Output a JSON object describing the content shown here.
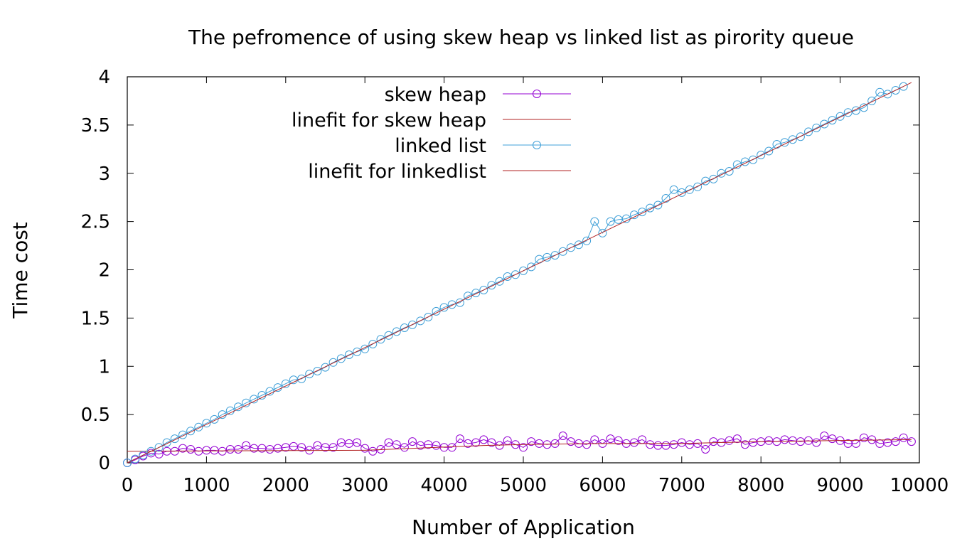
{
  "chart_data": {
    "type": "line",
    "title": "The pefromence of using skew heap vs linked list as pirority queue",
    "xlabel": "Number of Application",
    "ylabel": "Time cost",
    "xlim": [
      0,
      10000
    ],
    "ylim": [
      0,
      4
    ],
    "xticks": [
      0,
      1000,
      2000,
      3000,
      4000,
      5000,
      6000,
      7000,
      8000,
      9000,
      10000
    ],
    "yticks": [
      0,
      0.5,
      1,
      1.5,
      2,
      2.5,
      3,
      3.5,
      4
    ],
    "xtick_labels": [
      "0",
      "1000",
      "2000",
      "3000",
      "4000",
      "5000",
      "6000",
      "7000",
      "8000",
      "9000",
      "10000"
    ],
    "ytick_labels": [
      "0",
      "0.5",
      "1",
      "1.5",
      "2",
      "2.5",
      "3",
      "3.5",
      "4"
    ],
    "grid": false,
    "legend_position": "top-left",
    "series": [
      {
        "name": "skew heap",
        "style": "linespoints",
        "color": "#9400d3",
        "x": [
          0,
          100,
          200,
          300,
          400,
          500,
          600,
          700,
          800,
          900,
          1000,
          1100,
          1200,
          1300,
          1400,
          1500,
          1600,
          1700,
          1800,
          1900,
          2000,
          2100,
          2200,
          2300,
          2400,
          2500,
          2600,
          2700,
          2800,
          2900,
          3000,
          3100,
          3200,
          3300,
          3400,
          3500,
          3600,
          3700,
          3800,
          3900,
          4000,
          4100,
          4200,
          4300,
          4400,
          4500,
          4600,
          4700,
          4800,
          4900,
          5000,
          5100,
          5200,
          5300,
          5400,
          5500,
          5600,
          5700,
          5800,
          5900,
          6000,
          6100,
          6200,
          6300,
          6400,
          6500,
          6600,
          6700,
          6800,
          6900,
          7000,
          7100,
          7200,
          7300,
          7400,
          7500,
          7600,
          7700,
          7800,
          7900,
          8000,
          8100,
          8200,
          8300,
          8400,
          8500,
          8600,
          8700,
          8800,
          8900,
          9000,
          9100,
          9200,
          9300,
          9400,
          9500,
          9600,
          9700,
          9800,
          9900
        ],
        "y": [
          0.0,
          0.03,
          0.07,
          0.1,
          0.09,
          0.12,
          0.12,
          0.15,
          0.14,
          0.12,
          0.13,
          0.13,
          0.12,
          0.14,
          0.14,
          0.18,
          0.15,
          0.15,
          0.14,
          0.15,
          0.16,
          0.17,
          0.16,
          0.13,
          0.18,
          0.16,
          0.16,
          0.21,
          0.2,
          0.21,
          0.15,
          0.12,
          0.14,
          0.21,
          0.19,
          0.16,
          0.22,
          0.18,
          0.19,
          0.18,
          0.16,
          0.16,
          0.25,
          0.2,
          0.21,
          0.24,
          0.21,
          0.18,
          0.23,
          0.19,
          0.16,
          0.22,
          0.2,
          0.19,
          0.2,
          0.28,
          0.22,
          0.2,
          0.19,
          0.24,
          0.2,
          0.25,
          0.23,
          0.2,
          0.21,
          0.24,
          0.19,
          0.18,
          0.18,
          0.19,
          0.21,
          0.19,
          0.2,
          0.14,
          0.22,
          0.21,
          0.23,
          0.25,
          0.19,
          0.21,
          0.22,
          0.23,
          0.22,
          0.24,
          0.23,
          0.22,
          0.23,
          0.21,
          0.28,
          0.25,
          0.23,
          0.2,
          0.2,
          0.26,
          0.24,
          0.2,
          0.21,
          0.22,
          0.26,
          0.22
        ]
      },
      {
        "name": "linefit for skew heap",
        "style": "lines",
        "color": "#b22222",
        "x": [
          0,
          3000,
          4500,
          5000,
          6000,
          7000,
          8000,
          9900
        ],
        "y": [
          0.12,
          0.13,
          0.18,
          0.19,
          0.2,
          0.2,
          0.22,
          0.24
        ]
      },
      {
        "name": "linked list",
        "style": "linespoints",
        "color": "#40a0d8",
        "x": [
          0,
          100,
          200,
          300,
          400,
          500,
          600,
          700,
          800,
          900,
          1000,
          1100,
          1200,
          1300,
          1400,
          1500,
          1600,
          1700,
          1800,
          1900,
          2000,
          2100,
          2200,
          2300,
          2400,
          2500,
          2600,
          2700,
          2800,
          2900,
          3000,
          3100,
          3200,
          3300,
          3400,
          3500,
          3600,
          3700,
          3800,
          3900,
          4000,
          4100,
          4200,
          4300,
          4400,
          4500,
          4600,
          4700,
          4800,
          4900,
          5000,
          5100,
          5200,
          5300,
          5400,
          5500,
          5600,
          5700,
          5800,
          5900,
          6000,
          6100,
          6200,
          6300,
          6400,
          6500,
          6600,
          6700,
          6800,
          6900,
          7000,
          7100,
          7200,
          7300,
          7400,
          7500,
          7600,
          7700,
          7800,
          7900,
          8000,
          8100,
          8200,
          8300,
          8400,
          8500,
          8600,
          8700,
          8800,
          8900,
          9000,
          9100,
          9200,
          9300,
          9400,
          9500,
          9600,
          9700,
          9800
        ],
        "y": [
          0.0,
          0.04,
          0.08,
          0.12,
          0.16,
          0.21,
          0.25,
          0.29,
          0.33,
          0.37,
          0.41,
          0.45,
          0.5,
          0.54,
          0.58,
          0.62,
          0.66,
          0.7,
          0.74,
          0.78,
          0.82,
          0.86,
          0.87,
          0.92,
          0.95,
          0.99,
          1.04,
          1.08,
          1.12,
          1.15,
          1.18,
          1.23,
          1.28,
          1.32,
          1.36,
          1.4,
          1.43,
          1.47,
          1.51,
          1.57,
          1.61,
          1.64,
          1.66,
          1.73,
          1.76,
          1.79,
          1.84,
          1.88,
          1.93,
          1.95,
          1.99,
          2.03,
          2.11,
          2.13,
          2.15,
          2.19,
          2.23,
          2.26,
          2.3,
          2.5,
          2.38,
          2.5,
          2.52,
          2.53,
          2.57,
          2.6,
          2.64,
          2.67,
          2.74,
          2.83,
          2.8,
          2.83,
          2.86,
          2.92,
          2.94,
          3.0,
          3.02,
          3.09,
          3.12,
          3.14,
          3.19,
          3.23,
          3.3,
          3.32,
          3.35,
          3.38,
          3.43,
          3.47,
          3.51,
          3.55,
          3.59,
          3.63,
          3.65,
          3.68,
          3.75,
          3.84,
          3.82,
          3.86,
          3.9
        ]
      },
      {
        "name": "linefit for linkedlist",
        "style": "lines",
        "color": "#b22222",
        "x": [
          0,
          9900
        ],
        "y": [
          0.0,
          3.94
        ]
      }
    ]
  }
}
